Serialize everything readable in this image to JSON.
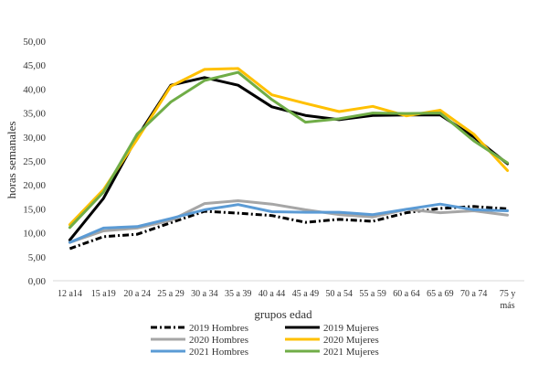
{
  "chart_data": {
    "type": "line",
    "title": "",
    "xlabel": "grupos edad",
    "ylabel": "horas semanales",
    "ylim": [
      0,
      50
    ],
    "yticks": [
      "0,00",
      "5,00",
      "10,00",
      "15,00",
      "20,00",
      "25,00",
      "30,00",
      "35,00",
      "40,00",
      "45,00",
      "50,00"
    ],
    "grid": false,
    "legend_position": "bottom",
    "categories": [
      [
        "12 a14"
      ],
      [
        "15 a19"
      ],
      [
        "20 a 24"
      ],
      [
        "25 a 29"
      ],
      [
        "30 a 34"
      ],
      [
        "35 a 39"
      ],
      [
        "40 a 44"
      ],
      [
        "45 a 49"
      ],
      [
        "50 a 54"
      ],
      [
        "55 a 59"
      ],
      [
        "60 a 64"
      ],
      [
        "65 a 69"
      ],
      [
        "70 a 74"
      ],
      [
        "75 y",
        "más"
      ]
    ],
    "series": [
      {
        "name": "2019 Hombres",
        "color": "#000000",
        "dash": "dashdot",
        "values": [
          6.7,
          9.2,
          9.7,
          12.1,
          14.5,
          14.1,
          13.6,
          12.2,
          12.8,
          12.4,
          14.2,
          15.1,
          15.5,
          15.0
        ]
      },
      {
        "name": "2019 Mujeres",
        "color": "#000000",
        "dash": "solid",
        "values": [
          8.5,
          17.2,
          30.0,
          40.8,
          42.4,
          40.8,
          36.3,
          34.5,
          33.6,
          34.5,
          34.6,
          34.6,
          30.0,
          24.4
        ]
      },
      {
        "name": "2020 Hombres",
        "color": "#a6a6a6",
        "dash": "solid",
        "values": [
          8.0,
          10.4,
          11.0,
          12.6,
          16.1,
          16.7,
          16.0,
          14.8,
          13.8,
          13.3,
          14.9,
          14.2,
          14.6,
          13.7
        ]
      },
      {
        "name": "2020 Mujeres",
        "color": "#ffc000",
        "dash": "solid",
        "values": [
          11.7,
          19.0,
          29.5,
          40.6,
          44.1,
          44.3,
          38.8,
          37.0,
          35.3,
          36.4,
          34.4,
          35.6,
          30.6,
          23.0
        ]
      },
      {
        "name": "2021 Hombres",
        "color": "#5b9bd5",
        "dash": "solid",
        "values": [
          8.0,
          11.0,
          11.3,
          13.0,
          14.8,
          15.9,
          14.4,
          14.3,
          14.3,
          13.8,
          14.9,
          16.0,
          14.8,
          14.6
        ]
      },
      {
        "name": "2021 Mujeres",
        "color": "#70ad47",
        "dash": "solid",
        "values": [
          11.1,
          18.5,
          30.6,
          37.3,
          41.8,
          43.5,
          37.8,
          33.1,
          33.8,
          35.0,
          34.9,
          35.0,
          29.2,
          24.6
        ]
      }
    ]
  }
}
